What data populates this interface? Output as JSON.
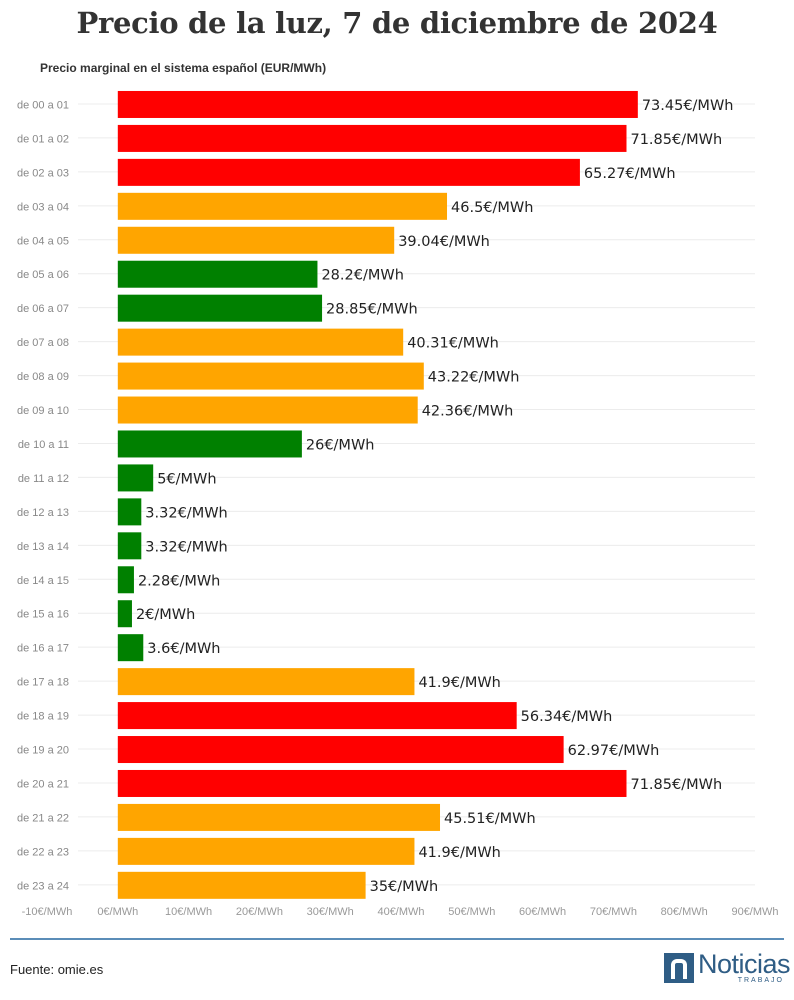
{
  "page": {
    "title": "Precio de la luz, 7 de diciembre de 2024",
    "subtitle": "Precio marginal en el sistema español (EUR/MWh)",
    "source": "Fuente: omie.es",
    "logo": {
      "word": "Noticias",
      "sub": "TRABAJO"
    }
  },
  "chart_data": {
    "type": "bar",
    "orientation": "horizontal",
    "title": "Precio de la luz, 7 de diciembre de 2024",
    "subtitle": "Precio marginal en el sistema español (EUR/MWh)",
    "xlim": [
      -10,
      90
    ],
    "x_ticks": [
      -10,
      0,
      10,
      20,
      30,
      40,
      50,
      60,
      70,
      80,
      90
    ],
    "x_tick_labels": [
      "-10€/MWh",
      "0€/MWh",
      "10€/MWh",
      "20€/MWh",
      "30€/MWh",
      "40€/MWh",
      "50€/MWh",
      "60€/MWh",
      "70€/MWh",
      "80€/MWh",
      "90€/MWh"
    ],
    "grid": true,
    "colors": {
      "high": "#ff0000",
      "mid": "#ffa500",
      "low": "#008000"
    },
    "categories": [
      "de 00 a 01",
      "de 01 a 02",
      "de 02 a 03",
      "de 03 a 04",
      "de 04 a 05",
      "de 05 a 06",
      "de 06 a 07",
      "de 07 a 08",
      "de 08 a 09",
      "de 09 a 10",
      "de 10 a 11",
      "de 11 a 12",
      "de 12 a 13",
      "de 13 a 14",
      "de 14 a 15",
      "de 15 a 16",
      "de 16 a 17",
      "de 17 a 18",
      "de 18 a 19",
      "de 19 a 20",
      "de 20 a 21",
      "de 21 a 22",
      "de 22 a 23",
      "de 23 a 24"
    ],
    "values": [
      73.45,
      71.85,
      65.27,
      46.5,
      39.04,
      28.2,
      28.85,
      40.31,
      43.22,
      42.36,
      26,
      5,
      3.32,
      3.32,
      2.28,
      2,
      3.6,
      41.9,
      56.34,
      62.97,
      71.85,
      45.51,
      41.9,
      35
    ],
    "labels": [
      "73.45€/MWh",
      "71.85€/MWh",
      "65.27€/MWh",
      "46.5€/MWh",
      "39.04€/MWh",
      "28.2€/MWh",
      "28.85€/MWh",
      "40.31€/MWh",
      "43.22€/MWh",
      "42.36€/MWh",
      "26€/MWh",
      "5€/MWh",
      "3.32€/MWh",
      "3.32€/MWh",
      "2.28€/MWh",
      "2€/MWh",
      "3.6€/MWh",
      "41.9€/MWh",
      "56.34€/MWh",
      "62.97€/MWh",
      "71.85€/MWh",
      "45.51€/MWh",
      "41.9€/MWh",
      "35€/MWh"
    ],
    "bar_color_keys": [
      "high",
      "high",
      "high",
      "mid",
      "mid",
      "low",
      "low",
      "mid",
      "mid",
      "mid",
      "low",
      "low",
      "low",
      "low",
      "low",
      "low",
      "low",
      "mid",
      "high",
      "high",
      "high",
      "mid",
      "mid",
      "mid"
    ]
  }
}
